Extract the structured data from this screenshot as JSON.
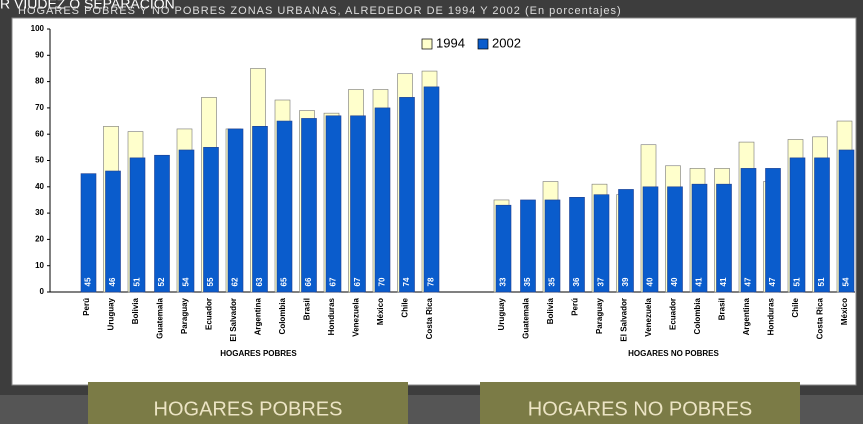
{
  "slide": {
    "heading": "R VIUDEZ O SEPARACION",
    "subtitle": "HOGARES POBRES Y NO POBRES  ZONAS URBANAS,  ALREDEDOR DE 1994 Y 2002 (En porcentajes)",
    "buttons": [
      "HOGARES POBRES",
      "HOGARES NO POBRES"
    ]
  },
  "chart_data": [
    {
      "type": "bar",
      "xlabel": "HOGARES POBRES",
      "legend": "top",
      "ylim": [
        0,
        100
      ],
      "yticks": [
        0,
        10,
        20,
        30,
        40,
        50,
        60,
        70,
        80,
        90,
        100
      ],
      "categories": [
        "Perú",
        "Uruguay",
        "Bolivia",
        "Guatemala",
        "Paraguay",
        "Ecuador",
        "El Salvador",
        "Argentina",
        "Colombia",
        "Brasil",
        "Honduras",
        "Venezuela",
        "México",
        "Chile",
        "Costa Rica"
      ],
      "series": [
        {
          "name": "1994",
          "color": "#ffffcc",
          "values": [
            null,
            63,
            61,
            null,
            62,
            74,
            62,
            85,
            73,
            69,
            68,
            77,
            77,
            83,
            84
          ]
        },
        {
          "name": "2002",
          "color": "#0a5ccc",
          "values": [
            45,
            46,
            51,
            52,
            54,
            55,
            62,
            63,
            65,
            66,
            67,
            67,
            70,
            74,
            78
          ]
        }
      ]
    },
    {
      "type": "bar",
      "xlabel": "HOGARES NO POBRES",
      "categories": [
        "Uruguay",
        "Guatemala",
        "Bolivia",
        "Perú",
        "Paraguay",
        "El Salvador",
        "Venezuela",
        "Ecuador",
        "Colombia",
        "Brasil",
        "Argentina",
        "Honduras",
        "Chile",
        "Costa Rica",
        "México"
      ],
      "series": [
        {
          "color": "#ffffcc",
          "values": [
            35,
            null,
            42,
            null,
            41,
            37,
            56,
            48,
            47,
            47,
            57,
            42,
            58,
            59,
            65
          ]
        },
        {
          "color": "#0a5ccc",
          "values": [
            33,
            35,
            35,
            36,
            37,
            39,
            40,
            40,
            41,
            41,
            47,
            47,
            51,
            51,
            54
          ]
        }
      ]
    }
  ]
}
